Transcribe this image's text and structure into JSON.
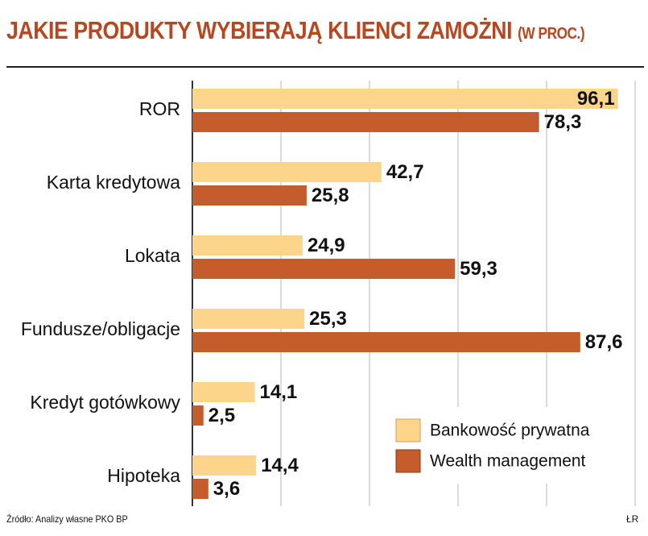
{
  "title": "JAKIE PRODUKTY WYBIERAJĄ KLIENCI ZAMOŻNI",
  "title_suffix": "(W PROC.)",
  "source": "Źródło: Analizy własne PKO BP",
  "credit": "ŁR",
  "colors": {
    "series1": "#fdd58a",
    "series2": "#c45c2c",
    "title": "#b8461e",
    "grid": "#cfcfcf"
  },
  "chart_data": {
    "type": "bar",
    "orientation": "horizontal",
    "title": "JAKIE PRODUKTY WYBIERAJĄ KLIENCI ZAMOŻNI (W PROC.)",
    "categories": [
      "ROR",
      "Karta kredytowa",
      "Lokata",
      "Fundusze/obligacje",
      "Kredyt gotówkowy",
      "Hipoteka"
    ],
    "series": [
      {
        "name": "Bankowość prywatna",
        "values": [
          96.1,
          42.7,
          24.9,
          25.3,
          14.1,
          14.4
        ],
        "labels": [
          "96,1",
          "42,7",
          "24,9",
          "25,3",
          "14,1",
          "14,4"
        ]
      },
      {
        "name": "Wealth management",
        "values": [
          78.3,
          25.8,
          59.3,
          87.6,
          2.5,
          3.6
        ],
        "labels": [
          "78,3",
          "25,8",
          "59,3",
          "87,6",
          "2,5",
          "3,6"
        ]
      }
    ],
    "xlim": [
      0,
      100
    ],
    "grid": true,
    "legend": "bottom-right"
  }
}
